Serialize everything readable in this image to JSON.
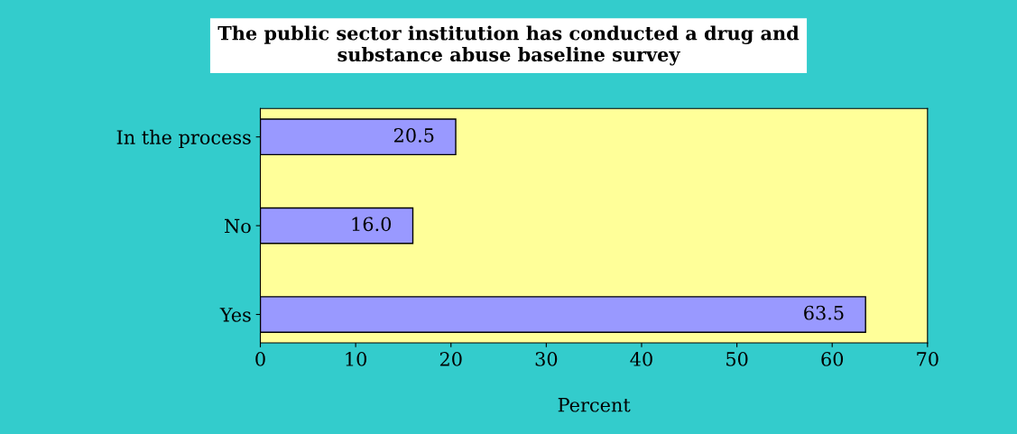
{
  "chart_data": {
    "type": "bar",
    "orientation": "horizontal",
    "title": "The public sector institution has conducted a drug and\nsubstance abuse baseline survey",
    "xlabel": "Percent",
    "categories": [
      "In the process",
      "No",
      "Yes"
    ],
    "values": [
      20.5,
      16.0,
      63.5
    ],
    "value_labels": [
      "20.5",
      "16.0",
      "63.5"
    ],
    "color": "#9999ff",
    "xlim": [
      0,
      70
    ],
    "xticks": [
      0,
      10,
      20,
      30,
      40,
      50,
      60,
      70
    ],
    "grid": false,
    "legend": false
  }
}
